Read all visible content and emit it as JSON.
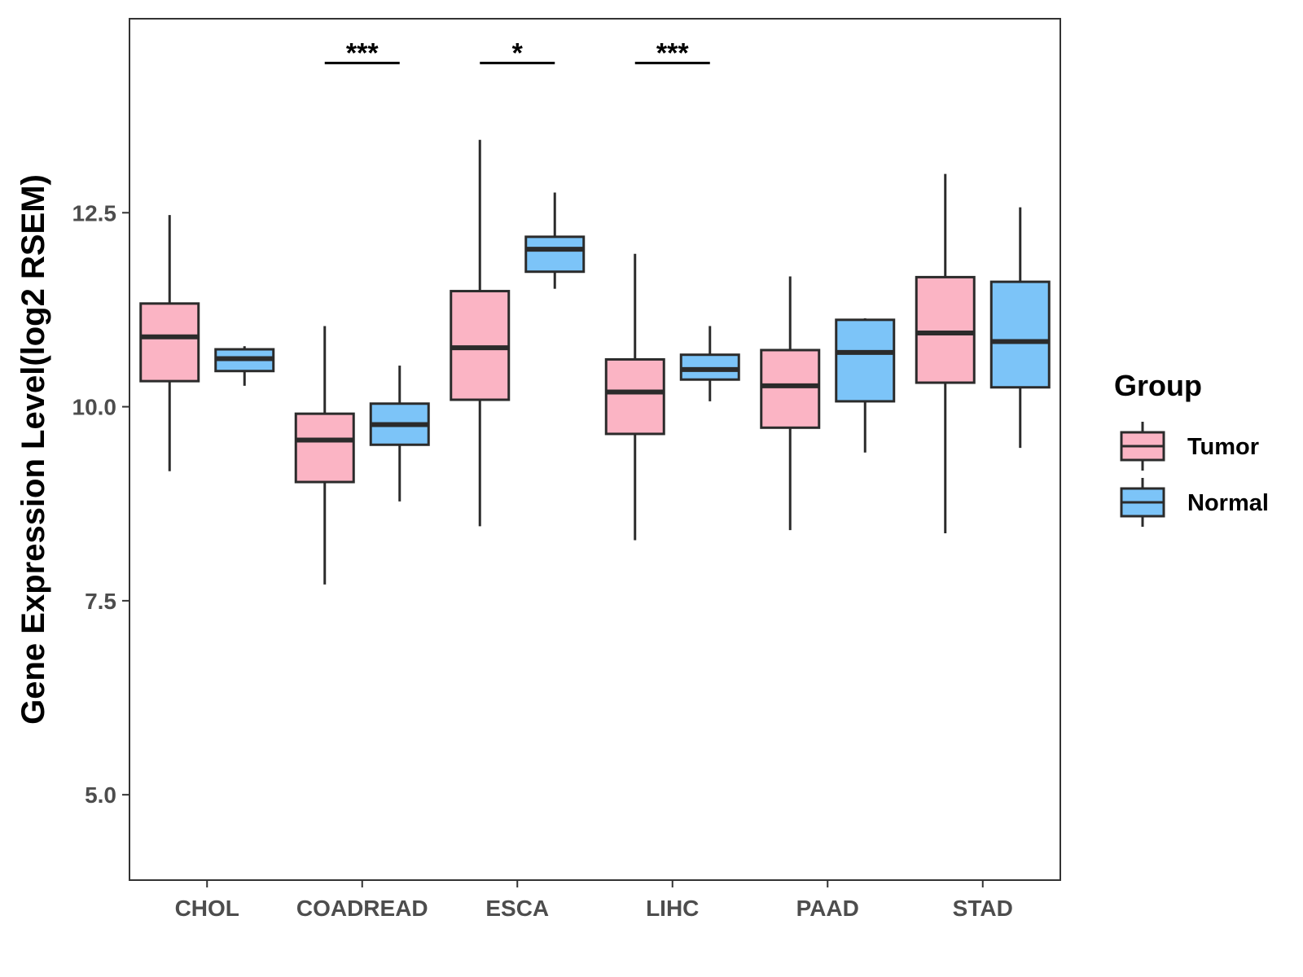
{
  "chart_data": {
    "type": "boxplot",
    "title": "",
    "xlabel": "",
    "ylabel": "Gene Expression Level(log2 RSEM)",
    "ylim": [
      3.9,
      15.0
    ],
    "yticks": [
      5.0,
      7.5,
      10.0,
      12.5
    ],
    "ytick_labels": [
      "5.0",
      "7.5",
      "10.0",
      "12.5"
    ],
    "categories": [
      "CHOL",
      "COADREAD",
      "ESCA",
      "LIHC",
      "PAAD",
      "STAD"
    ],
    "legend": {
      "title": "Group",
      "position": "right",
      "entries": [
        {
          "name": "Tumor",
          "color": "#fbb4c4"
        },
        {
          "name": "Normal",
          "color": "#7cc4f8"
        }
      ]
    },
    "series": [
      {
        "name": "Tumor",
        "color": "#fbb4c4",
        "boxes": [
          {
            "category": "CHOL",
            "whisker_low": 9.17,
            "q1": 10.33,
            "median": 10.9,
            "q3": 11.33,
            "whisker_high": 12.47
          },
          {
            "category": "COADREAD",
            "whisker_low": 7.71,
            "q1": 9.03,
            "median": 9.57,
            "q3": 9.91,
            "whisker_high": 11.04
          },
          {
            "category": "ESCA",
            "whisker_low": 8.46,
            "q1": 10.09,
            "median": 10.76,
            "q3": 11.49,
            "whisker_high": 13.44
          },
          {
            "category": "LIHC",
            "whisker_low": 8.28,
            "q1": 9.65,
            "median": 10.19,
            "q3": 10.61,
            "whisker_high": 11.97
          },
          {
            "category": "PAAD",
            "whisker_low": 8.41,
            "q1": 9.73,
            "median": 10.27,
            "q3": 10.73,
            "whisker_high": 11.68
          },
          {
            "category": "STAD",
            "whisker_low": 8.37,
            "q1": 10.31,
            "median": 10.95,
            "q3": 11.67,
            "whisker_high": 13.0
          }
        ]
      },
      {
        "name": "Normal",
        "color": "#7cc4f8",
        "boxes": [
          {
            "category": "CHOL",
            "whisker_low": 10.27,
            "q1": 10.46,
            "median": 10.62,
            "q3": 10.74,
            "whisker_high": 10.78
          },
          {
            "category": "COADREAD",
            "whisker_low": 8.78,
            "q1": 9.51,
            "median": 9.77,
            "q3": 10.04,
            "whisker_high": 10.53
          },
          {
            "category": "ESCA",
            "whisker_low": 11.52,
            "q1": 11.74,
            "median": 12.03,
            "q3": 12.19,
            "whisker_high": 12.76
          },
          {
            "category": "LIHC",
            "whisker_low": 10.07,
            "q1": 10.35,
            "median": 10.48,
            "q3": 10.67,
            "whisker_high": 11.04
          },
          {
            "category": "PAAD",
            "whisker_low": 9.41,
            "q1": 10.07,
            "median": 10.7,
            "q3": 11.12,
            "whisker_high": 11.14
          },
          {
            "category": "STAD",
            "whisker_low": 9.47,
            "q1": 10.25,
            "median": 10.84,
            "q3": 11.61,
            "whisker_high": 12.57
          }
        ]
      }
    ],
    "significance": [
      {
        "category": "COADREAD",
        "label": "***",
        "y": 14.43
      },
      {
        "category": "ESCA",
        "label": "*",
        "y": 14.43
      },
      {
        "category": "LIHC",
        "label": "***",
        "y": 14.43
      }
    ],
    "grid": false
  }
}
